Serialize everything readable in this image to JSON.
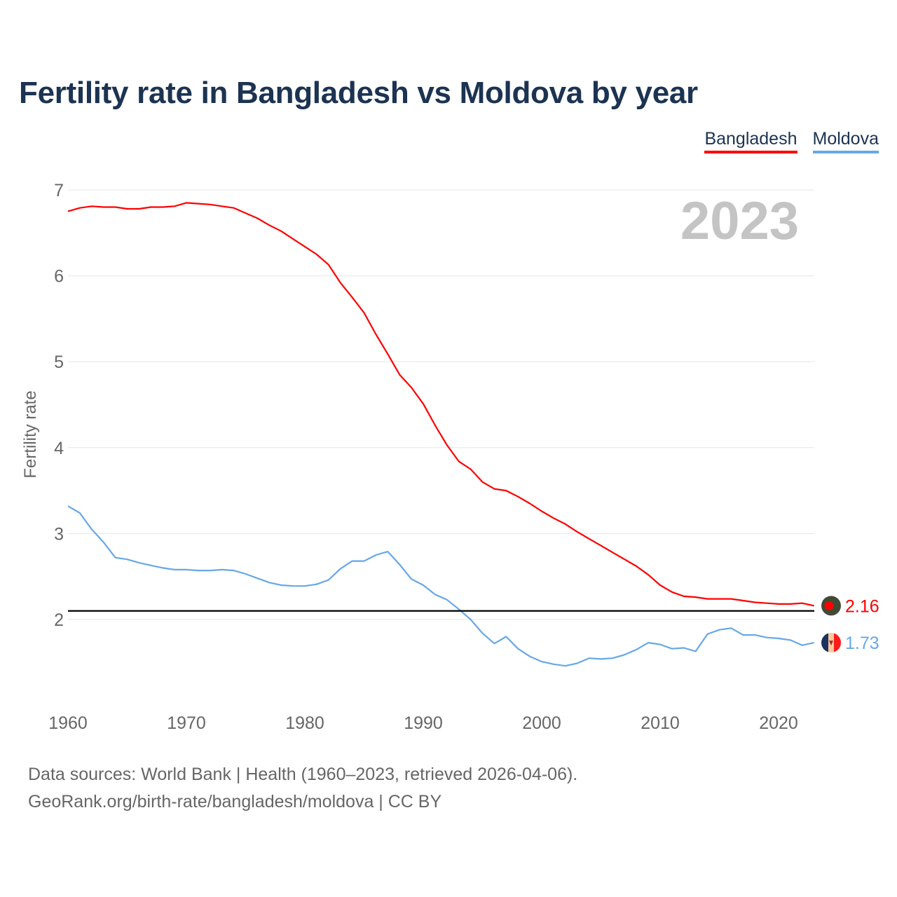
{
  "chart_data": {
    "type": "line",
    "title": "Fertility rate in Bangladesh vs Moldova by year",
    "xlabel": "",
    "ylabel": "Fertility rate",
    "xlim": [
      1960,
      2023
    ],
    "ylim": [
      1.1,
      7.1
    ],
    "x_ticks": [
      1960,
      1970,
      1980,
      1990,
      2000,
      2010,
      2020
    ],
    "y_ticks": [
      2,
      3,
      4,
      5,
      6,
      7
    ],
    "grid": true,
    "legend_position": "top-right",
    "current_year_label": "2023",
    "reference_line": {
      "value": 2.1,
      "color": "#000000"
    },
    "x": [
      1960,
      1961,
      1962,
      1963,
      1964,
      1965,
      1966,
      1967,
      1968,
      1969,
      1970,
      1971,
      1972,
      1973,
      1974,
      1975,
      1976,
      1977,
      1978,
      1979,
      1980,
      1981,
      1982,
      1983,
      1984,
      1985,
      1986,
      1987,
      1988,
      1989,
      1990,
      1991,
      1992,
      1993,
      1994,
      1995,
      1996,
      1997,
      1998,
      1999,
      2000,
      2001,
      2002,
      2003,
      2004,
      2005,
      2006,
      2007,
      2008,
      2009,
      2010,
      2011,
      2012,
      2013,
      2014,
      2015,
      2016,
      2017,
      2018,
      2019,
      2020,
      2021,
      2022,
      2023
    ],
    "series": [
      {
        "name": "Bangladesh",
        "color": "#ff0000",
        "end_label": "2.16",
        "flag": "bangladesh-flag",
        "values": [
          6.75,
          6.79,
          6.81,
          6.8,
          6.8,
          6.78,
          6.78,
          6.8,
          6.8,
          6.81,
          6.85,
          6.84,
          6.83,
          6.81,
          6.79,
          6.73,
          6.67,
          6.59,
          6.52,
          6.43,
          6.34,
          6.25,
          6.13,
          5.92,
          5.75,
          5.57,
          5.32,
          5.09,
          4.85,
          4.7,
          4.51,
          4.26,
          4.03,
          3.84,
          3.75,
          3.6,
          3.52,
          3.5,
          3.43,
          3.35,
          3.26,
          3.18,
          3.11,
          3.02,
          2.94,
          2.86,
          2.78,
          2.7,
          2.62,
          2.52,
          2.4,
          2.32,
          2.27,
          2.26,
          2.24,
          2.24,
          2.24,
          2.22,
          2.2,
          2.19,
          2.18,
          2.18,
          2.19,
          2.16
        ]
      },
      {
        "name": "Moldova",
        "color": "#66a8e8",
        "end_label": "1.73",
        "flag": "moldova-flag",
        "values": [
          3.32,
          3.24,
          3.05,
          2.9,
          2.72,
          2.7,
          2.66,
          2.63,
          2.6,
          2.58,
          2.58,
          2.57,
          2.57,
          2.58,
          2.57,
          2.53,
          2.48,
          2.43,
          2.4,
          2.39,
          2.39,
          2.41,
          2.46,
          2.59,
          2.68,
          2.68,
          2.75,
          2.79,
          2.64,
          2.47,
          2.4,
          2.29,
          2.23,
          2.12,
          2.0,
          1.84,
          1.72,
          1.8,
          1.66,
          1.57,
          1.51,
          1.48,
          1.46,
          1.49,
          1.55,
          1.54,
          1.55,
          1.59,
          1.65,
          1.73,
          1.71,
          1.66,
          1.67,
          1.63,
          1.83,
          1.88,
          1.9,
          1.82,
          1.82,
          1.79,
          1.78,
          1.76,
          1.7,
          1.73
        ]
      }
    ]
  },
  "footer": {
    "line1": "Data sources: World Bank | Health (1960–2023, retrieved 2026-04-06).",
    "line2": "GeoRank.org/birth-rate/bangladesh/moldova | CC BY"
  }
}
